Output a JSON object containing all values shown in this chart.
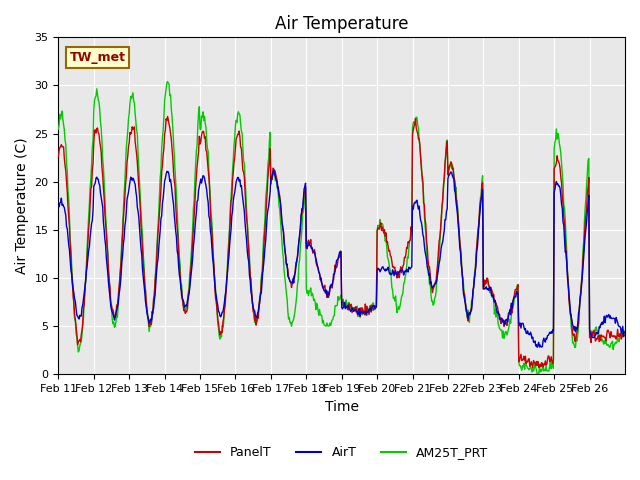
{
  "title": "Air Temperature",
  "ylabel": "Air Temperature (C)",
  "xlabel": "Time",
  "ylim": [
    0,
    35
  ],
  "xtick_labels": [
    "Feb 11",
    "Feb 12",
    "Feb 13",
    "Feb 14",
    "Feb 15",
    "Feb 16",
    "Feb 17",
    "Feb 18",
    "Feb 19",
    "Feb 20",
    "Feb 21",
    "Feb 22",
    "Feb 23",
    "Feb 24",
    "Feb 25",
    "Feb 26"
  ],
  "ytick_positions": [
    0,
    5,
    10,
    15,
    20,
    25,
    30,
    35
  ],
  "panel_color": "#cc0000",
  "air_color": "#0000cc",
  "am25_color": "#00cc00",
  "bg_color": "#e8e8e8",
  "station_label": "TW_met",
  "station_label_color": "#990000",
  "station_box_facecolor": "#ffffcc",
  "station_box_edgecolor": "#996600",
  "legend_labels": [
    "PanelT",
    "AirT",
    "AM25T_PRT"
  ],
  "title_fontsize": 12,
  "axis_label_fontsize": 10,
  "tick_fontsize": 8
}
